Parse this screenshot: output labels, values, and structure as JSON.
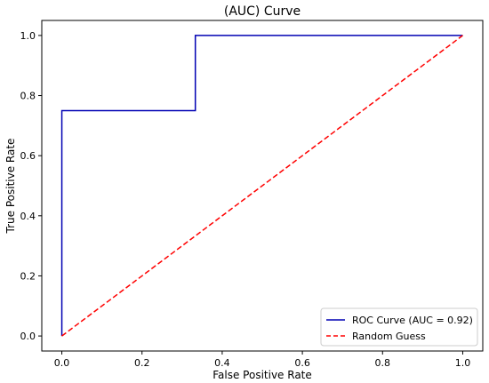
{
  "chart_data": {
    "type": "line",
    "title": "(AUC) Curve",
    "xlabel": "False Positive Rate",
    "ylabel": "True Positive Rate",
    "xlim": [
      -0.05,
      1.05
    ],
    "ylim": [
      -0.05,
      1.05
    ],
    "x_ticks": [
      0.0,
      0.2,
      0.4,
      0.6,
      0.8,
      1.0
    ],
    "y_ticks": [
      0.0,
      0.2,
      0.4,
      0.6,
      0.8,
      1.0
    ],
    "x_tick_labels": [
      "0.0",
      "0.2",
      "0.4",
      "0.6",
      "0.8",
      "1.0"
    ],
    "y_tick_labels": [
      "0.0",
      "0.2",
      "0.4",
      "0.6",
      "0.8",
      "1.0"
    ],
    "grid": false,
    "legend_position": "lower-right",
    "series": [
      {
        "name": "ROC Curve (AUC = 0.92)",
        "color": "#0000b3",
        "style": "solid",
        "x": [
          0.0,
          0.0,
          0.0,
          0.333,
          0.333,
          1.0
        ],
        "y": [
          0.0,
          0.0,
          0.75,
          0.75,
          1.0,
          1.0
        ]
      },
      {
        "name": "Random Guess",
        "color": "#ff0000",
        "style": "dashed",
        "x": [
          0.0,
          1.0
        ],
        "y": [
          0.0,
          1.0
        ]
      }
    ]
  }
}
